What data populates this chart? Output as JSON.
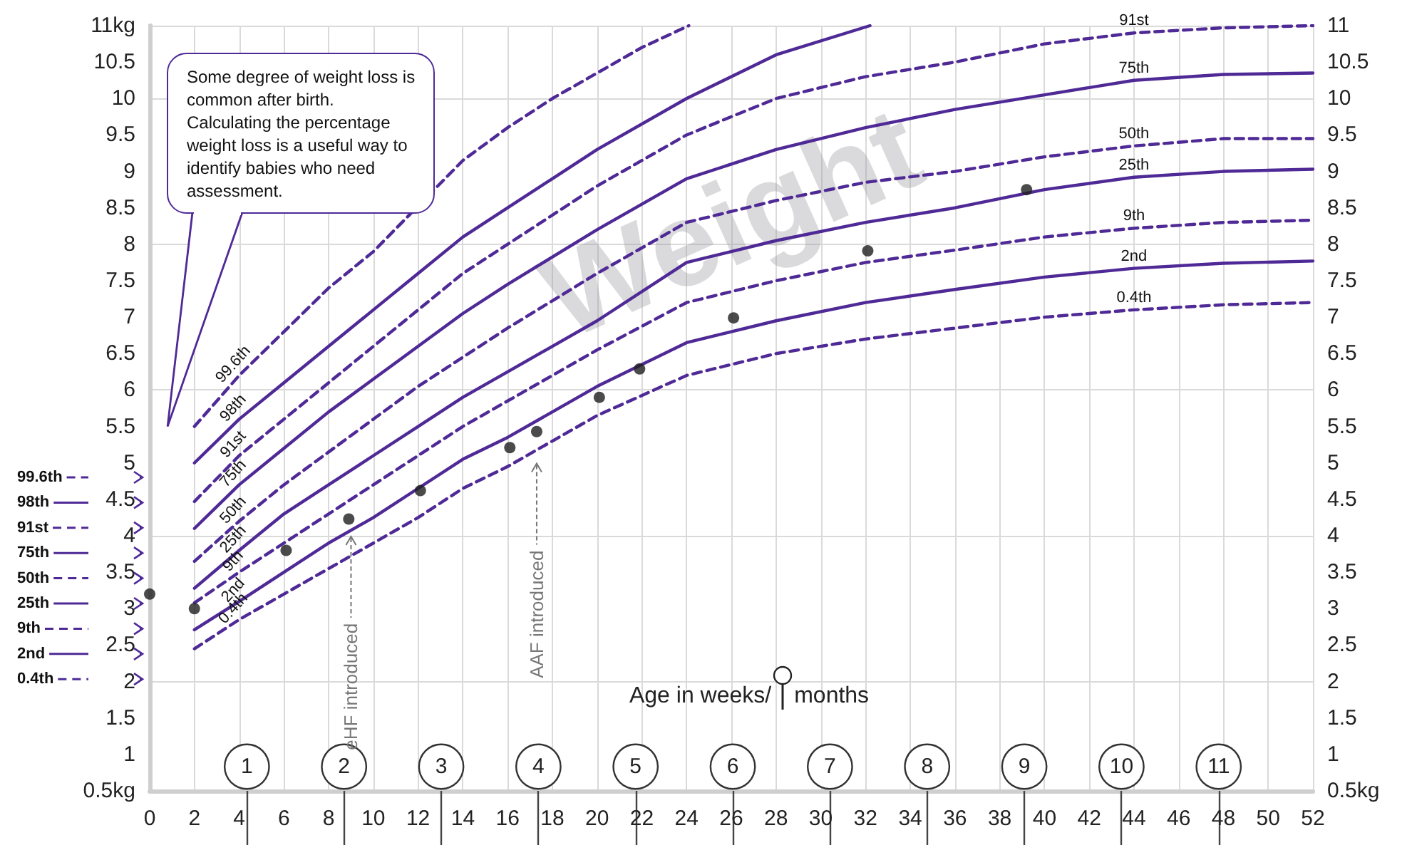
{
  "chart_data": {
    "type": "line",
    "xlabel": "Age in weeks/",
    "x2label": "months",
    "xlim": [
      0,
      52
    ],
    "xticks": [
      0,
      2,
      4,
      6,
      8,
      10,
      12,
      14,
      16,
      18,
      20,
      22,
      24,
      26,
      28,
      30,
      32,
      34,
      36,
      38,
      40,
      42,
      44,
      46,
      48,
      50,
      52
    ],
    "x2lim": [
      0,
      11.97
    ],
    "x2ticks": [
      1,
      2,
      3,
      4,
      5,
      6,
      7,
      8,
      9,
      10,
      11
    ],
    "ylim": [
      0.5,
      11
    ],
    "yticks": [
      {
        "value": 0.5,
        "label": "0.5kg"
      },
      1,
      1.5,
      2,
      2.5,
      3,
      3.5,
      4,
      4.5,
      5,
      5.5,
      6,
      6.5,
      7,
      7.5,
      8,
      8.5,
      9,
      9.5,
      10,
      10.5,
      {
        "value": 11,
        "label": "11kg"
      }
    ],
    "y2lim": [
      0.5,
      11
    ],
    "y2ticks": [
      {
        "value": 0.5,
        "label": "0.5kg"
      },
      1,
      1.5,
      2,
      2.5,
      3,
      3.5,
      4,
      4.5,
      5,
      5.5,
      6,
      6.5,
      7,
      7.5,
      8,
      8.5,
      9,
      9.5,
      10,
      10.5,
      11
    ],
    "grid": true,
    "legend": "left",
    "series": [
      {
        "name": "99.6th",
        "color": "#4f2a96",
        "line_style": "dashed",
        "marker": "none",
        "x": [
          2,
          4,
          6,
          8,
          10,
          14,
          16,
          18,
          20,
          22,
          24.1
        ],
        "values": [
          5.5,
          6.2,
          6.8,
          7.4,
          7.9,
          9.15,
          9.6,
          10.0,
          10.35,
          10.7,
          11
        ]
      },
      {
        "name": "98th",
        "color": "#4f2a96",
        "line_style": "solid",
        "marker": "none",
        "x": [
          2,
          4,
          6,
          8,
          10,
          12,
          14,
          16,
          18,
          20,
          24,
          28,
          32.2
        ],
        "values": [
          5.0,
          5.6,
          6.1,
          6.6,
          7.1,
          7.6,
          8.1,
          8.5,
          8.9,
          9.3,
          10.0,
          10.6,
          11
        ]
      },
      {
        "name": "91st",
        "color": "#4f2a96",
        "line_style": "dashed",
        "marker": "none",
        "x": [
          2,
          4,
          6,
          8,
          10,
          12,
          14,
          16,
          20,
          24,
          28,
          32,
          36,
          40,
          44,
          48,
          52
        ],
        "values": [
          4.47,
          5.1,
          5.6,
          6.1,
          6.6,
          7.1,
          7.6,
          8.0,
          8.8,
          9.5,
          10.0,
          10.3,
          10.5,
          10.75,
          10.9,
          10.97,
          11.0
        ]
      },
      {
        "name": "75th",
        "color": "#4f2a96",
        "line_style": "solid",
        "marker": "none",
        "x": [
          2,
          4,
          6,
          8,
          10,
          12,
          14,
          16,
          20,
          24,
          28,
          32,
          36,
          40,
          44,
          48,
          52
        ],
        "values": [
          4.1,
          4.7,
          5.2,
          5.7,
          6.15,
          6.6,
          7.05,
          7.45,
          8.2,
          8.9,
          9.3,
          9.6,
          9.85,
          10.05,
          10.25,
          10.33,
          10.35
        ]
      },
      {
        "name": "50th",
        "color": "#4f2a96",
        "line_style": "dashed",
        "marker": "none",
        "x": [
          2,
          4,
          6,
          8,
          10,
          12,
          14,
          16,
          20,
          24,
          28,
          32,
          36,
          40,
          44,
          48,
          52
        ],
        "values": [
          3.65,
          4.2,
          4.7,
          5.15,
          5.6,
          6.05,
          6.45,
          6.85,
          7.6,
          8.3,
          8.6,
          8.85,
          9.0,
          9.2,
          9.35,
          9.45,
          9.45
        ]
      },
      {
        "name": "25th",
        "color": "#4f2a96",
        "line_style": "solid",
        "marker": "none",
        "x": [
          2,
          4,
          6,
          8,
          10,
          12,
          14,
          16,
          20,
          24,
          28,
          32,
          36,
          40,
          44,
          48,
          52
        ],
        "values": [
          3.28,
          3.8,
          4.3,
          4.7,
          5.1,
          5.5,
          5.9,
          6.25,
          6.95,
          7.75,
          8.05,
          8.3,
          8.5,
          8.75,
          8.92,
          9.0,
          9.03
        ]
      },
      {
        "name": "9th",
        "color": "#4f2a96",
        "line_style": "dashed",
        "marker": "none",
        "x": [
          2,
          4,
          6,
          8,
          10,
          12,
          14,
          16,
          20,
          24,
          28,
          32,
          36,
          40,
          44,
          48,
          52
        ],
        "values": [
          3.08,
          3.5,
          3.9,
          4.3,
          4.7,
          5.1,
          5.5,
          5.85,
          6.55,
          7.2,
          7.5,
          7.75,
          7.92,
          8.1,
          8.22,
          8.3,
          8.33
        ]
      },
      {
        "name": "2nd",
        "color": "#4f2a96",
        "line_style": "solid",
        "marker": "none",
        "x": [
          2,
          4,
          6,
          8,
          10,
          12,
          14,
          16,
          20,
          24,
          28,
          32,
          36,
          40,
          44,
          48,
          52
        ],
        "values": [
          2.71,
          3.1,
          3.5,
          3.9,
          4.25,
          4.65,
          5.05,
          5.35,
          6.05,
          6.65,
          6.95,
          7.2,
          7.38,
          7.55,
          7.67,
          7.74,
          7.77
        ]
      },
      {
        "name": "0.4th",
        "color": "#4f2a96",
        "line_style": "dashed",
        "marker": "none",
        "x": [
          2,
          4,
          6,
          8,
          10,
          12,
          14,
          16,
          20,
          24,
          28,
          32,
          36,
          40,
          44,
          48,
          52
        ],
        "values": [
          2.45,
          2.85,
          3.2,
          3.55,
          3.9,
          4.25,
          4.65,
          4.95,
          5.65,
          6.2,
          6.5,
          6.7,
          6.85,
          7.0,
          7.1,
          7.17,
          7.2
        ]
      },
      {
        "type": "scatter",
        "color": "#1e1e1e",
        "marker": "circle",
        "x": [
          0,
          2,
          6.1,
          8.9,
          12.1,
          16.1,
          17.3,
          20.1,
          21.9,
          26.1,
          32.1,
          39.2
        ],
        "values": [
          3.2,
          3.0,
          3.8,
          4.23,
          4.62,
          5.21,
          5.43,
          5.9,
          6.29,
          6.99,
          7.91,
          8.75
        ]
      }
    ],
    "annotations": [
      "Some degree of weight loss is common after birth. Calculating the percentage weight loss is a useful way to identify babies who need assessment.",
      "Weight",
      {
        "text": "eHF introduced",
        "x": 9,
        "y": 4.05
      },
      {
        "text": "AAF introduced",
        "x": 17.3,
        "y": 5.05
      }
    ]
  }
}
